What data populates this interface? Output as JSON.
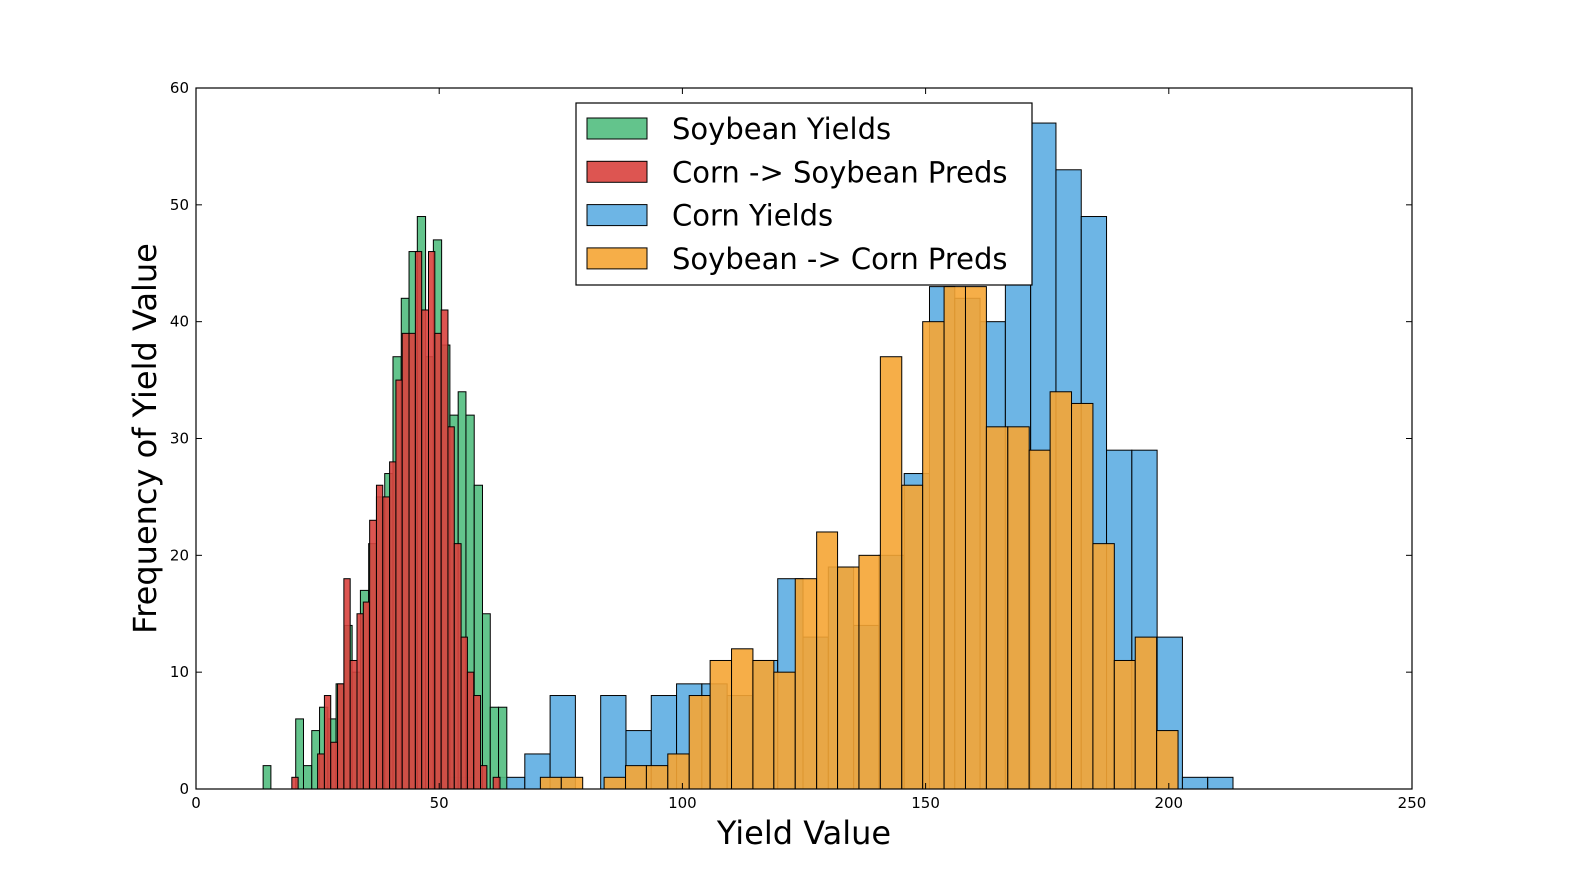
{
  "chart_data": {
    "type": "bar",
    "subtype": "overlaid-histogram",
    "title": "",
    "xlabel": "Yield Value",
    "ylabel": "Frequency of Yield Value",
    "xlim": [
      0,
      250
    ],
    "ylim": [
      0,
      60
    ],
    "xticks": [
      0,
      50,
      100,
      150,
      200,
      250
    ],
    "yticks": [
      0,
      10,
      20,
      30,
      40,
      50,
      60
    ],
    "grid": false,
    "legend_position": "upper-center",
    "series": [
      {
        "name": "Corn Yields",
        "color": "#5DADE2",
        "bins": [
          {
            "x0": 52.0,
            "x1": 57.2,
            "count": 1
          },
          {
            "x0": 62.4,
            "x1": 67.6,
            "count": 1
          },
          {
            "x0": 67.6,
            "x1": 72.8,
            "count": 3
          },
          {
            "x0": 72.8,
            "x1": 78.0,
            "count": 8
          },
          {
            "x0": 78.0,
            "x1": 83.2,
            "count": 0
          },
          {
            "x0": 83.2,
            "x1": 88.4,
            "count": 8
          },
          {
            "x0": 88.4,
            "x1": 93.6,
            "count": 5
          },
          {
            "x0": 93.6,
            "x1": 98.8,
            "count": 8
          },
          {
            "x0": 98.8,
            "x1": 104.0,
            "count": 9
          },
          {
            "x0": 104.0,
            "x1": 109.2,
            "count": 9
          },
          {
            "x0": 109.2,
            "x1": 114.4,
            "count": 8
          },
          {
            "x0": 114.4,
            "x1": 119.6,
            "count": 11
          },
          {
            "x0": 119.6,
            "x1": 124.8,
            "count": 18
          },
          {
            "x0": 124.8,
            "x1": 130.0,
            "count": 13
          },
          {
            "x0": 130.0,
            "x1": 135.2,
            "count": 19
          },
          {
            "x0": 135.2,
            "x1": 140.4,
            "count": 14
          },
          {
            "x0": 140.4,
            "x1": 145.6,
            "count": 20
          },
          {
            "x0": 145.6,
            "x1": 150.8,
            "count": 27
          },
          {
            "x0": 150.8,
            "x1": 156.0,
            "count": 43
          },
          {
            "x0": 156.0,
            "x1": 161.2,
            "count": 42
          },
          {
            "x0": 161.2,
            "x1": 166.4,
            "count": 40
          },
          {
            "x0": 166.4,
            "x1": 171.6,
            "count": 45
          },
          {
            "x0": 171.6,
            "x1": 176.8,
            "count": 57
          },
          {
            "x0": 176.8,
            "x1": 182.0,
            "count": 53
          },
          {
            "x0": 182.0,
            "x1": 187.2,
            "count": 49
          },
          {
            "x0": 187.2,
            "x1": 192.4,
            "count": 29
          },
          {
            "x0": 192.4,
            "x1": 197.6,
            "count": 29
          },
          {
            "x0": 197.6,
            "x1": 202.8,
            "count": 13
          },
          {
            "x0": 202.8,
            "x1": 208.0,
            "count": 1
          },
          {
            "x0": 208.0,
            "x1": 213.2,
            "count": 1
          }
        ]
      },
      {
        "name": "Soybean Yields",
        "color": "#52BE80",
        "bins": [
          {
            "x0": 13.8,
            "x1": 15.4,
            "count": 2
          },
          {
            "x0": 20.5,
            "x1": 22.1,
            "count": 6
          },
          {
            "x0": 22.1,
            "x1": 23.8,
            "count": 2
          },
          {
            "x0": 23.8,
            "x1": 25.4,
            "count": 5
          },
          {
            "x0": 25.4,
            "x1": 27.1,
            "count": 7
          },
          {
            "x0": 27.1,
            "x1": 28.8,
            "count": 6
          },
          {
            "x0": 28.8,
            "x1": 30.5,
            "count": 9
          },
          {
            "x0": 30.5,
            "x1": 32.1,
            "count": 14
          },
          {
            "x0": 32.1,
            "x1": 33.8,
            "count": 10
          },
          {
            "x0": 33.8,
            "x1": 35.5,
            "count": 17
          },
          {
            "x0": 35.5,
            "x1": 37.1,
            "count": 21
          },
          {
            "x0": 37.1,
            "x1": 38.8,
            "count": 25
          },
          {
            "x0": 38.8,
            "x1": 40.5,
            "count": 27
          },
          {
            "x0": 40.5,
            "x1": 42.2,
            "count": 37
          },
          {
            "x0": 42.2,
            "x1": 43.8,
            "count": 42
          },
          {
            "x0": 43.8,
            "x1": 45.5,
            "count": 46
          },
          {
            "x0": 45.5,
            "x1": 47.2,
            "count": 49
          },
          {
            "x0": 47.2,
            "x1": 48.8,
            "count": 37
          },
          {
            "x0": 48.8,
            "x1": 50.5,
            "count": 47
          },
          {
            "x0": 50.5,
            "x1": 52.2,
            "count": 38
          },
          {
            "x0": 52.2,
            "x1": 53.9,
            "count": 32
          },
          {
            "x0": 53.9,
            "x1": 55.5,
            "count": 34
          },
          {
            "x0": 55.5,
            "x1": 57.2,
            "count": 32
          },
          {
            "x0": 57.2,
            "x1": 58.9,
            "count": 26
          },
          {
            "x0": 58.9,
            "x1": 60.5,
            "count": 15
          },
          {
            "x0": 60.5,
            "x1": 62.2,
            "count": 7
          },
          {
            "x0": 62.2,
            "x1": 63.9,
            "count": 7
          }
        ]
      },
      {
        "name": "Corn -> Soybean Preds",
        "color": "#D9433E",
        "bins": [
          {
            "x0": 19.7,
            "x1": 21.0,
            "count": 1
          },
          {
            "x0": 21.0,
            "x1": 22.4,
            "count": 0
          },
          {
            "x0": 22.4,
            "x1": 23.7,
            "count": 0
          },
          {
            "x0": 23.7,
            "x1": 25.0,
            "count": 0
          },
          {
            "x0": 25.0,
            "x1": 26.4,
            "count": 3
          },
          {
            "x0": 26.4,
            "x1": 27.7,
            "count": 8
          },
          {
            "x0": 27.7,
            "x1": 29.1,
            "count": 4
          },
          {
            "x0": 29.1,
            "x1": 30.4,
            "count": 9
          },
          {
            "x0": 30.4,
            "x1": 31.7,
            "count": 18
          },
          {
            "x0": 31.7,
            "x1": 33.1,
            "count": 11
          },
          {
            "x0": 33.1,
            "x1": 34.4,
            "count": 15
          },
          {
            "x0": 34.4,
            "x1": 35.7,
            "count": 16
          },
          {
            "x0": 35.7,
            "x1": 37.1,
            "count": 23
          },
          {
            "x0": 37.1,
            "x1": 38.4,
            "count": 26
          },
          {
            "x0": 38.4,
            "x1": 39.8,
            "count": 25
          },
          {
            "x0": 39.8,
            "x1": 41.1,
            "count": 28
          },
          {
            "x0": 41.1,
            "x1": 42.4,
            "count": 35
          },
          {
            "x0": 42.4,
            "x1": 43.8,
            "count": 39
          },
          {
            "x0": 43.8,
            "x1": 45.1,
            "count": 39
          },
          {
            "x0": 45.1,
            "x1": 46.4,
            "count": 46
          },
          {
            "x0": 46.4,
            "x1": 47.8,
            "count": 41
          },
          {
            "x0": 47.8,
            "x1": 49.1,
            "count": 46
          },
          {
            "x0": 49.1,
            "x1": 50.4,
            "count": 39
          },
          {
            "x0": 50.4,
            "x1": 51.8,
            "count": 41
          },
          {
            "x0": 51.8,
            "x1": 53.1,
            "count": 31
          },
          {
            "x0": 53.1,
            "x1": 54.5,
            "count": 21
          },
          {
            "x0": 54.5,
            "x1": 55.8,
            "count": 13
          },
          {
            "x0": 55.8,
            "x1": 57.1,
            "count": 10
          },
          {
            "x0": 57.1,
            "x1": 58.5,
            "count": 8
          },
          {
            "x0": 58.5,
            "x1": 59.8,
            "count": 2
          },
          {
            "x0": 59.8,
            "x1": 61.1,
            "count": 0
          },
          {
            "x0": 61.1,
            "x1": 62.5,
            "count": 1
          }
        ]
      },
      {
        "name": "Soybean -> Corn Preds",
        "color": "#F5A534",
        "bins": [
          {
            "x0": 66.4,
            "x1": 70.8,
            "count": 0
          },
          {
            "x0": 70.8,
            "x1": 75.1,
            "count": 1
          },
          {
            "x0": 75.1,
            "x1": 79.5,
            "count": 1
          },
          {
            "x0": 79.5,
            "x1": 83.9,
            "count": 0
          },
          {
            "x0": 83.9,
            "x1": 88.3,
            "count": 1
          },
          {
            "x0": 88.3,
            "x1": 92.6,
            "count": 2
          },
          {
            "x0": 92.6,
            "x1": 97.0,
            "count": 2
          },
          {
            "x0": 97.0,
            "x1": 101.4,
            "count": 3
          },
          {
            "x0": 101.4,
            "x1": 105.7,
            "count": 8
          },
          {
            "x0": 105.7,
            "x1": 110.1,
            "count": 11
          },
          {
            "x0": 110.1,
            "x1": 114.5,
            "count": 12
          },
          {
            "x0": 114.5,
            "x1": 118.8,
            "count": 11
          },
          {
            "x0": 118.8,
            "x1": 123.2,
            "count": 10
          },
          {
            "x0": 123.2,
            "x1": 127.6,
            "count": 18
          },
          {
            "x0": 127.6,
            "x1": 131.9,
            "count": 22
          },
          {
            "x0": 131.9,
            "x1": 136.3,
            "count": 19
          },
          {
            "x0": 136.3,
            "x1": 140.7,
            "count": 20
          },
          {
            "x0": 140.7,
            "x1": 145.1,
            "count": 37
          },
          {
            "x0": 145.1,
            "x1": 149.4,
            "count": 26
          },
          {
            "x0": 149.4,
            "x1": 153.8,
            "count": 40
          },
          {
            "x0": 153.8,
            "x1": 158.2,
            "count": 43
          },
          {
            "x0": 158.2,
            "x1": 162.5,
            "count": 43
          },
          {
            "x0": 162.5,
            "x1": 166.9,
            "count": 31
          },
          {
            "x0": 166.9,
            "x1": 171.3,
            "count": 31
          },
          {
            "x0": 171.3,
            "x1": 175.6,
            "count": 29
          },
          {
            "x0": 175.6,
            "x1": 180.0,
            "count": 34
          },
          {
            "x0": 180.0,
            "x1": 184.4,
            "count": 33
          },
          {
            "x0": 184.4,
            "x1": 188.8,
            "count": 21
          },
          {
            "x0": 188.8,
            "x1": 193.1,
            "count": 11
          },
          {
            "x0": 193.1,
            "x1": 197.5,
            "count": 13
          },
          {
            "x0": 197.5,
            "x1": 201.9,
            "count": 5
          }
        ]
      }
    ],
    "legend_order": [
      "Soybean Yields",
      "Corn -> Soybean Preds",
      "Corn Yields",
      "Soybean -> Corn Preds"
    ]
  }
}
